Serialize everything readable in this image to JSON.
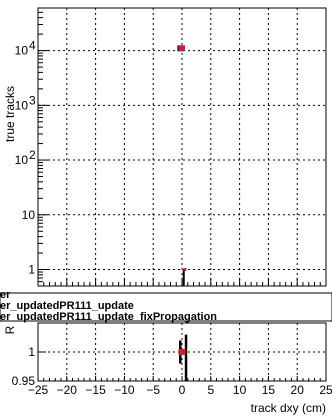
{
  "chart_data": [
    {
      "panel": "top",
      "type": "scatter",
      "ylabel": "true tracks",
      "yscale": "log",
      "xlim": [
        -25,
        25
      ],
      "ylim": [
        0.5,
        60000
      ],
      "y_ticks": [
        {
          "value": 1,
          "label": "1"
        },
        {
          "value": 10,
          "label": "10"
        },
        {
          "value": 100,
          "label": "10",
          "exp": "2"
        },
        {
          "value": 1000,
          "label": "10",
          "exp": "3"
        },
        {
          "value": 10000,
          "label": "10",
          "exp": "4"
        }
      ],
      "grid": true,
      "series": [
        {
          "color": "#1f1f9f",
          "points": [
            {
              "x": -0.3,
              "y": 11000
            }
          ]
        },
        {
          "color": "#cc1f2f",
          "points": [
            {
              "x": 0.0,
              "y": 11000
            },
            {
              "x": 0.5,
              "y": 1.0
            }
          ]
        }
      ],
      "vertical_bar": {
        "x": 0.3,
        "from": 0.5,
        "to": 1.0
      }
    },
    {
      "panel": "ratio",
      "type": "scatter",
      "ylabel": "R",
      "xlabel": "track dxy (cm)",
      "xlim": [
        -25,
        25
      ],
      "ylim": [
        0.95,
        1.05
      ],
      "y_ticks": [
        {
          "value": 0.95,
          "label": "0.95"
        },
        {
          "value": 1.0,
          "label": "1"
        }
      ],
      "x_ticks": [
        -25,
        -20,
        -15,
        -10,
        -5,
        0,
        5,
        10,
        15,
        20,
        25
      ],
      "x_tick_labels": [
        "−25",
        "−20",
        "−15",
        "−10",
        "−5",
        "0",
        "5",
        "10",
        "15",
        "20",
        "25"
      ],
      "grid": true,
      "series": [
        {
          "color": "#cc1f2f",
          "points": [
            {
              "x": 0.0,
              "y": 1.0
            }
          ]
        }
      ],
      "vertical_bars": [
        {
          "x": -0.3,
          "from": 0.98,
          "to": 1.02
        },
        {
          "x": 0.7,
          "from": 0.95,
          "to": 1.03
        }
      ]
    }
  ],
  "legend": {
    "entries": [
      "er",
      "er_updatedPR111_update",
      "er_updatedPR111_update_fixPropagation"
    ]
  }
}
